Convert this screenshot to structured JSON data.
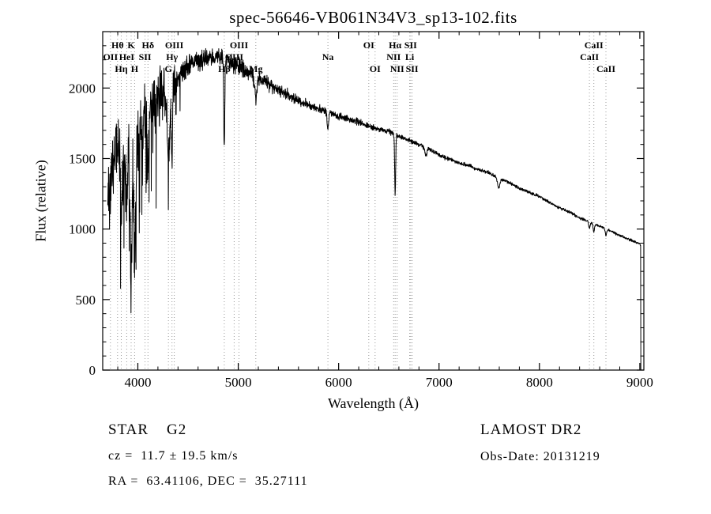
{
  "title": "spec-56646-VB061N34V3_sp13-102.fits",
  "footer": {
    "class_label": "STAR    G2",
    "survey": "LAMOST DR2",
    "cz": "cz =  11.7 ± 19.5 km/s",
    "obs_date": "Obs-Date: 20131219",
    "ra_dec": "RA =  63.41106, DEC =  35.27111"
  },
  "chart_data": {
    "type": "line",
    "title": "spec-56646-VB061N34V3_sp13-102.fits",
    "xlabel": "Wavelength (Å)",
    "ylabel": "Flux (relative)",
    "xlim": [
      3650,
      9040
    ],
    "ylim": [
      0,
      2400
    ],
    "xticks": [
      4000,
      5000,
      6000,
      7000,
      8000,
      9000
    ],
    "yticks": [
      0,
      500,
      1000,
      1500,
      2000
    ],
    "x_minor_step": 200,
    "y_minor_step": 100,
    "grid": false,
    "legend": "none",
    "line_color": "#000000",
    "marker_line_color": "#9b9b9b",
    "spectral_lines": [
      {
        "wavelength": 3727,
        "label": "OII",
        "row": 2
      },
      {
        "wavelength": 3798,
        "label": "Hθ",
        "row": 1
      },
      {
        "wavelength": 3835,
        "label": "Hη",
        "row": 3
      },
      {
        "wavelength": 3889,
        "label": "HeI",
        "row": 2
      },
      {
        "wavelength": 3933,
        "label": "K",
        "row": 1
      },
      {
        "wavelength": 3968,
        "label": "H",
        "row": 3
      },
      {
        "wavelength": 4072,
        "label": "SII",
        "row": 2
      },
      {
        "wavelength": 4101,
        "label": "Hδ",
        "row": 1
      },
      {
        "wavelength": 4305,
        "label": "G",
        "row": 3
      },
      {
        "wavelength": 4340,
        "label": "Hγ",
        "row": 2
      },
      {
        "wavelength": 4363,
        "label": "OIII",
        "row": 1
      },
      {
        "wavelength": 4861,
        "label": "Hβ",
        "row": 3
      },
      {
        "wavelength": 4959,
        "label": "OIII",
        "row": 2
      },
      {
        "wavelength": 5007,
        "label": "OIII",
        "row": 1
      },
      {
        "wavelength": 5175,
        "label": "Mg",
        "row": 3
      },
      {
        "wavelength": 5893,
        "label": "Na",
        "row": 2
      },
      {
        "wavelength": 6300,
        "label": "OI",
        "row": 1
      },
      {
        "wavelength": 6363,
        "label": "OI",
        "row": 3
      },
      {
        "wavelength": 6548,
        "label": "NII",
        "row": 2
      },
      {
        "wavelength": 6563,
        "label": "Hα",
        "row": 1
      },
      {
        "wavelength": 6583,
        "label": "NII",
        "row": 3
      },
      {
        "wavelength": 6708,
        "label": "Li",
        "row": 2
      },
      {
        "wavelength": 6717,
        "label": "SII",
        "row": 1
      },
      {
        "wavelength": 6731,
        "label": "SII",
        "row": 3
      },
      {
        "wavelength": 8498,
        "label": "CaII",
        "row": 2
      },
      {
        "wavelength": 8542,
        "label": "CaII",
        "row": 1
      },
      {
        "wavelength": 8662,
        "label": "CaII",
        "row": 3
      }
    ],
    "continuum": [
      [
        3700,
        1250
      ],
      [
        3750,
        1450
      ],
      [
        3790,
        1650
      ],
      [
        3830,
        1400
      ],
      [
        3870,
        1450
      ],
      [
        3910,
        1500
      ],
      [
        3950,
        1520
      ],
      [
        4000,
        1560
      ],
      [
        4060,
        1700
      ],
      [
        4120,
        1820
      ],
      [
        4180,
        1950
      ],
      [
        4240,
        1990
      ],
      [
        4300,
        1870
      ],
      [
        4360,
        2050
      ],
      [
        4420,
        2120
      ],
      [
        4500,
        2160
      ],
      [
        4600,
        2200
      ],
      [
        4700,
        2220
      ],
      [
        4800,
        2230
      ],
      [
        4900,
        2190
      ],
      [
        5000,
        2160
      ],
      [
        5100,
        2120
      ],
      [
        5200,
        2080
      ],
      [
        5300,
        2030
      ],
      [
        5400,
        1990
      ],
      [
        5500,
        1950
      ],
      [
        5600,
        1910
      ],
      [
        5700,
        1880
      ],
      [
        5800,
        1850
      ],
      [
        5900,
        1830
      ],
      [
        6000,
        1800
      ],
      [
        6100,
        1780
      ],
      [
        6200,
        1760
      ],
      [
        6300,
        1730
      ],
      [
        6400,
        1710
      ],
      [
        6500,
        1690
      ],
      [
        6600,
        1660
      ],
      [
        6700,
        1630
      ],
      [
        6800,
        1600
      ],
      [
        6900,
        1570
      ],
      [
        7000,
        1525
      ],
      [
        7100,
        1495
      ],
      [
        7200,
        1470
      ],
      [
        7300,
        1450
      ],
      [
        7400,
        1420
      ],
      [
        7500,
        1400
      ],
      [
        7600,
        1360
      ],
      [
        7700,
        1330
      ],
      [
        7800,
        1290
      ],
      [
        7900,
        1260
      ],
      [
        8000,
        1230
      ],
      [
        8100,
        1190
      ],
      [
        8200,
        1150
      ],
      [
        8300,
        1120
      ],
      [
        8400,
        1080
      ],
      [
        8500,
        1050
      ],
      [
        8600,
        1020
      ],
      [
        8700,
        990
      ],
      [
        8800,
        955
      ],
      [
        8900,
        925
      ],
      [
        9000,
        895
      ],
      [
        9008,
        885
      ]
    ],
    "absorption_features": [
      {
        "center": 3835,
        "depth": 300,
        "width": 6
      },
      {
        "center": 3889,
        "depth": 350,
        "width": 6
      },
      {
        "center": 3933,
        "depth": 850,
        "width": 8
      },
      {
        "center": 3968,
        "depth": 780,
        "width": 8
      },
      {
        "center": 4101,
        "depth": 430,
        "width": 6
      },
      {
        "center": 4305,
        "depth": 400,
        "width": 11
      },
      {
        "center": 4340,
        "depth": 560,
        "width": 5
      },
      {
        "center": 4861,
        "depth": 640,
        "width": 5
      },
      {
        "center": 5175,
        "depth": 170,
        "width": 11
      },
      {
        "center": 5893,
        "depth": 130,
        "width": 7
      },
      {
        "center": 6563,
        "depth": 430,
        "width": 5
      },
      {
        "center": 6870,
        "depth": 60,
        "width": 10
      },
      {
        "center": 7594,
        "depth": 70,
        "width": 12
      },
      {
        "center": 8498,
        "depth": 45,
        "width": 7
      },
      {
        "center": 8542,
        "depth": 55,
        "width": 7
      },
      {
        "center": 8662,
        "depth": 45,
        "width": 7
      }
    ],
    "noise_profile": [
      [
        3700,
        250
      ],
      [
        3900,
        260
      ],
      [
        4100,
        230
      ],
      [
        4300,
        180
      ],
      [
        4420,
        90
      ],
      [
        4700,
        70
      ],
      [
        5000,
        60
      ],
      [
        5300,
        45
      ],
      [
        5600,
        32
      ],
      [
        6000,
        24
      ],
      [
        6500,
        18
      ],
      [
        7000,
        13
      ],
      [
        7500,
        11
      ],
      [
        8000,
        10
      ],
      [
        8500,
        9
      ],
      [
        9008,
        9
      ]
    ],
    "noise_seed": 1337,
    "cutoff": {
      "wavelength": 9008,
      "flux_before": 885
    }
  }
}
